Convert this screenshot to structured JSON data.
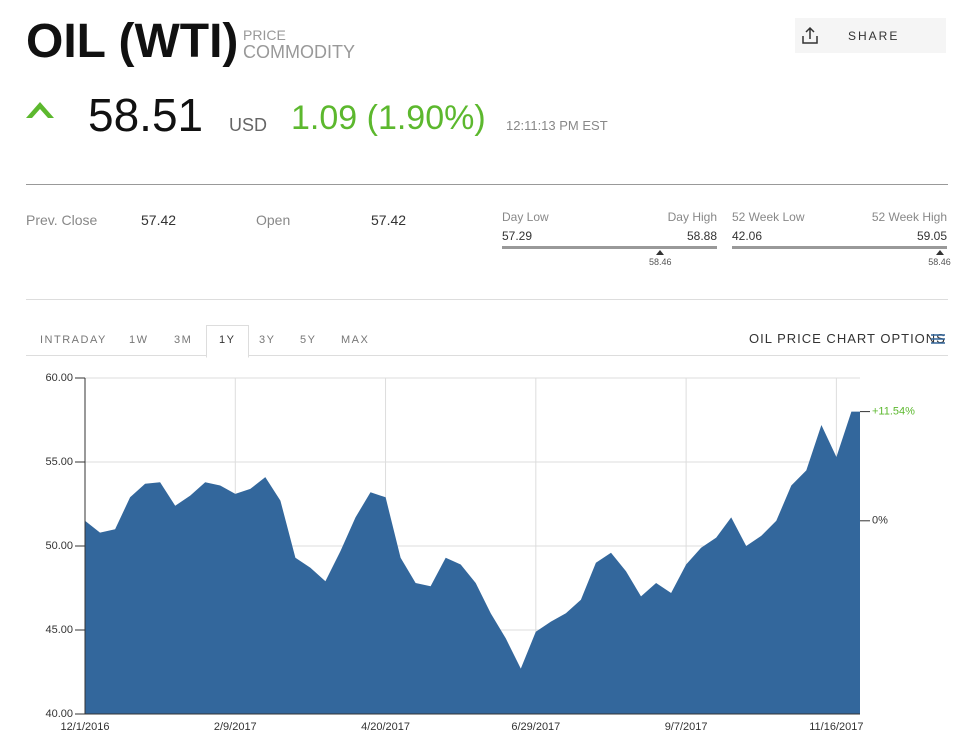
{
  "header": {
    "title": "OIL (WTI)",
    "kind_top": "PRICE",
    "kind_bottom": "COMMODITY",
    "share": "SHARE",
    "price": "58.51",
    "currency": "USD",
    "change": "1.09 (1.90%)",
    "time": "12:11:13 PM EST"
  },
  "stats": {
    "prev_close_label": "Prev. Close",
    "prev_close": "57.42",
    "open_label": "Open",
    "open": "57.42",
    "ranges": [
      {
        "low_label": "Day Low",
        "high_label": "Day High",
        "low": 57.29,
        "high": 58.88,
        "current": 58.46
      },
      {
        "low_label": "52 Week Low",
        "high_label": "52 Week High",
        "low": 42.06,
        "high": 59.05,
        "current": 58.46
      }
    ]
  },
  "tabs": {
    "items": [
      "INTRADAY",
      "1W",
      "3M",
      "1Y",
      "3Y",
      "5Y",
      "MAX"
    ],
    "active": "1Y",
    "options": "OIL PRICE CHART OPTIONS"
  },
  "chart_data": {
    "type": "area",
    "color": "#33679c",
    "x": [
      "12/1/2016",
      "12/8/2016",
      "12/15/2016",
      "12/22/2016",
      "12/29/2016",
      "1/5/2017",
      "1/12/2017",
      "1/19/2017",
      "1/26/2017",
      "2/2/2017",
      "2/9/2017",
      "2/16/2017",
      "2/23/2017",
      "3/2/2017",
      "3/9/2017",
      "3/16/2017",
      "3/23/2017",
      "3/30/2017",
      "4/6/2017",
      "4/13/2017",
      "4/20/2017",
      "4/27/2017",
      "5/4/2017",
      "5/11/2017",
      "5/18/2017",
      "5/25/2017",
      "6/1/2017",
      "6/8/2017",
      "6/15/2017",
      "6/22/2017",
      "6/29/2017",
      "7/6/2017",
      "7/13/2017",
      "7/20/2017",
      "7/27/2017",
      "8/3/2017",
      "8/10/2017",
      "8/17/2017",
      "8/24/2017",
      "8/31/2017",
      "9/7/2017",
      "9/14/2017",
      "9/21/2017",
      "9/28/2017",
      "10/5/2017",
      "10/12/2017",
      "10/19/2017",
      "10/26/2017",
      "11/2/2017",
      "11/9/2017",
      "11/16/2017",
      "11/23/2017",
      "11/27/2017"
    ],
    "values": [
      51.5,
      50.8,
      51.0,
      52.9,
      53.7,
      53.8,
      52.4,
      53.0,
      53.8,
      53.6,
      53.1,
      53.4,
      54.1,
      52.7,
      49.3,
      48.7,
      47.9,
      49.7,
      51.7,
      53.2,
      52.9,
      49.3,
      47.8,
      47.6,
      49.3,
      48.9,
      47.8,
      46.0,
      44.5,
      42.7,
      44.9,
      45.5,
      46.0,
      46.8,
      49.0,
      49.6,
      48.5,
      47.0,
      47.8,
      47.2,
      48.9,
      49.9,
      50.5,
      51.7,
      50.0,
      50.6,
      51.5,
      53.6,
      54.5,
      57.2,
      55.3,
      58.0,
      58.0
    ],
    "xlim": [
      "12/1/2016",
      "11/27/2017"
    ],
    "xticks": [
      "12/1/2016",
      "2/9/2017",
      "4/20/2017",
      "6/29/2017",
      "9/7/2017",
      "11/16/2017"
    ],
    "ylim": [
      40,
      60
    ],
    "yticks": [
      {
        "value": 40,
        "label": "40.00"
      },
      {
        "value": 45,
        "label": "45.00"
      },
      {
        "value": 50,
        "label": "50.00"
      },
      {
        "value": 55,
        "label": "55.00"
      },
      {
        "value": 60,
        "label": "60.00"
      }
    ],
    "grid": true,
    "annotations": [
      "+11.54%",
      "0%"
    ]
  }
}
